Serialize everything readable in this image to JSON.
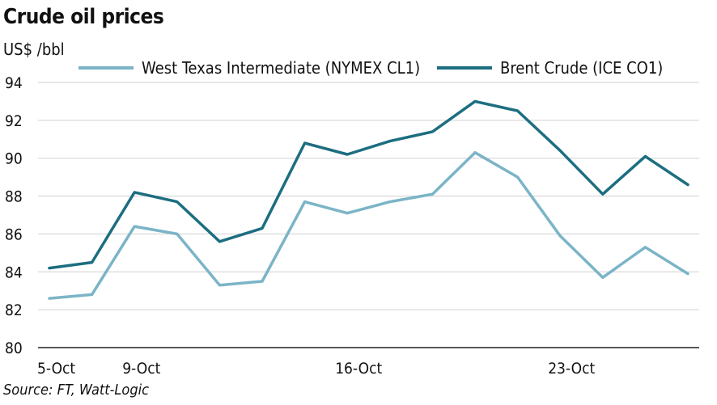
{
  "chart_data": {
    "type": "line",
    "title": "Crude oil prices",
    "ylabel": "US$ /bbl",
    "xlabel": "",
    "source": "Source: FT, Watt-Logic",
    "ylim": [
      80,
      94
    ],
    "yticks": [
      80,
      82,
      84,
      86,
      88,
      90,
      92,
      94
    ],
    "x_labels": [
      "5-Oct",
      "9-Oct",
      "16-Oct",
      "23-Oct"
    ],
    "x_label_index": [
      0,
      2,
      7,
      12
    ],
    "grid": true,
    "legend_position": "top",
    "x": [
      "5-Oct",
      "6-Oct",
      "9-Oct",
      "10-Oct",
      "11-Oct",
      "12-Oct",
      "13-Oct",
      "16-Oct",
      "17-Oct",
      "18-Oct",
      "19-Oct",
      "20-Oct",
      "23-Oct",
      "24-Oct",
      "25-Oct",
      "26-Oct"
    ],
    "series": [
      {
        "name": "West Texas Intermediate (NYMEX CL1)",
        "color": "#7bb4c7",
        "values": [
          82.6,
          82.8,
          86.4,
          86.0,
          83.3,
          83.5,
          87.7,
          87.1,
          87.7,
          88.1,
          90.3,
          89.0,
          85.9,
          83.7,
          85.3,
          83.9
        ]
      },
      {
        "name": "Brent Crude (ICE CO1)",
        "color": "#1c6e80",
        "values": [
          84.2,
          84.5,
          88.2,
          87.7,
          85.6,
          86.3,
          90.8,
          90.2,
          90.9,
          91.4,
          93.0,
          92.5,
          90.4,
          88.1,
          90.1,
          88.6
        ]
      }
    ]
  }
}
